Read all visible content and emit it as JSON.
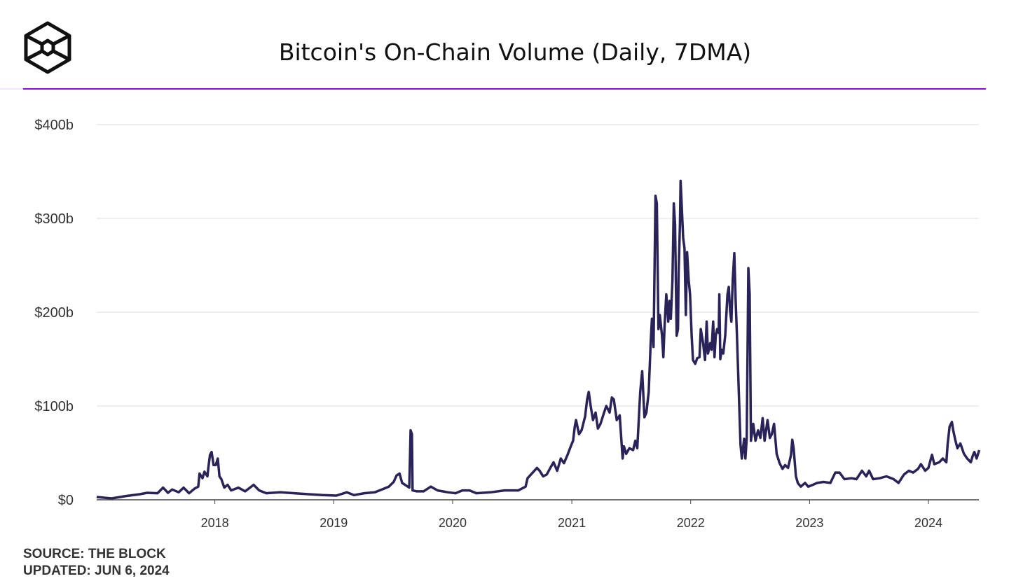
{
  "header": {
    "title": "Bitcoin's On-Chain Volume (Daily, 7DMA)",
    "logo_icon": "the-block-cube-logo"
  },
  "footer": {
    "source": "SOURCE: THE BLOCK",
    "updated": "UPDATED: JUN 6, 2024"
  },
  "colors": {
    "line": "#2a2359",
    "accent_rule": "#a000e6",
    "grid": "#e9e9ee",
    "axis": "#444444"
  },
  "chart_data": {
    "type": "line",
    "title": "Bitcoin's On-Chain Volume (Daily, 7DMA)",
    "xlabel": "",
    "ylabel": "",
    "x_range": [
      "2017-01-01",
      "2024-06-06"
    ],
    "ylim": [
      0,
      400
    ],
    "y_unit": "billion USD",
    "grid": true,
    "y_ticks": [
      {
        "value": 0,
        "label": "$0"
      },
      {
        "value": 100,
        "label": "$100b"
      },
      {
        "value": 200,
        "label": "$200b"
      },
      {
        "value": 300,
        "label": "$300b"
      },
      {
        "value": 400,
        "label": "$400b"
      }
    ],
    "x_ticks": [
      {
        "value": "2018-01-01",
        "label": "2018"
      },
      {
        "value": "2019-01-01",
        "label": "2019"
      },
      {
        "value": "2020-01-01",
        "label": "2020"
      },
      {
        "value": "2021-01-01",
        "label": "2021"
      },
      {
        "value": "2022-01-01",
        "label": "2022"
      },
      {
        "value": "2023-01-01",
        "label": "2023"
      },
      {
        "value": "2024-01-01",
        "label": "2024"
      }
    ],
    "points": [
      [
        "2017-01-03",
        3
      ],
      [
        "2017-02-18",
        1.5
      ],
      [
        "2017-04-03",
        4
      ],
      [
        "2017-05-16",
        6
      ],
      [
        "2017-06-07",
        7.5
      ],
      [
        "2017-07-09",
        7
      ],
      [
        "2017-07-26",
        13
      ],
      [
        "2017-08-10",
        7.5
      ],
      [
        "2017-08-23",
        11
      ],
      [
        "2017-09-12",
        8
      ],
      [
        "2017-09-27",
        13
      ],
      [
        "2017-10-14",
        7
      ],
      [
        "2017-10-31",
        12
      ],
      [
        "2017-11-11",
        14
      ],
      [
        "2017-11-15",
        28
      ],
      [
        "2017-11-24",
        23
      ],
      [
        "2017-11-30",
        30
      ],
      [
        "2017-12-09",
        25
      ],
      [
        "2017-12-13",
        37
      ],
      [
        "2017-12-17",
        48
      ],
      [
        "2017-12-22",
        51
      ],
      [
        "2017-12-28",
        37
      ],
      [
        "2018-01-04",
        37
      ],
      [
        "2018-01-10",
        44
      ],
      [
        "2018-01-15",
        25
      ],
      [
        "2018-01-21",
        22
      ],
      [
        "2018-01-30",
        13
      ],
      [
        "2018-02-09",
        16
      ],
      [
        "2018-02-20",
        10
      ],
      [
        "2018-03-14",
        13
      ],
      [
        "2018-04-04",
        9
      ],
      [
        "2018-04-30",
        16
      ],
      [
        "2018-05-17",
        10
      ],
      [
        "2018-06-08",
        7
      ],
      [
        "2018-07-21",
        8
      ],
      [
        "2018-09-02",
        7
      ],
      [
        "2018-10-15",
        6
      ],
      [
        "2018-11-28",
        5
      ],
      [
        "2019-01-09",
        4.5
      ],
      [
        "2019-02-10",
        8
      ],
      [
        "2019-03-04",
        5
      ],
      [
        "2019-04-05",
        7
      ],
      [
        "2019-05-07",
        8
      ],
      [
        "2019-05-29",
        11
      ],
      [
        "2019-06-19",
        14
      ],
      [
        "2019-07-04",
        19
      ],
      [
        "2019-07-13",
        26
      ],
      [
        "2019-07-22",
        28
      ],
      [
        "2019-07-30",
        18
      ],
      [
        "2019-08-12",
        15
      ],
      [
        "2019-08-21",
        13
      ],
      [
        "2019-08-25",
        74
      ],
      [
        "2019-08-29",
        70
      ],
      [
        "2019-08-31",
        10
      ],
      [
        "2019-09-13",
        9
      ],
      [
        "2019-10-04",
        9
      ],
      [
        "2019-10-26",
        14
      ],
      [
        "2019-11-16",
        10
      ],
      [
        "2019-12-18",
        8
      ],
      [
        "2020-01-10",
        7
      ],
      [
        "2020-01-31",
        10
      ],
      [
        "2020-02-22",
        10
      ],
      [
        "2020-03-14",
        7
      ],
      [
        "2020-04-26",
        8
      ],
      [
        "2020-06-08",
        10
      ],
      [
        "2020-07-21",
        10
      ],
      [
        "2020-08-12",
        14
      ],
      [
        "2020-08-18",
        23
      ],
      [
        "2020-09-03",
        29
      ],
      [
        "2020-09-16",
        34
      ],
      [
        "2020-09-24",
        31
      ],
      [
        "2020-10-05",
        25
      ],
      [
        "2020-10-16",
        27
      ],
      [
        "2020-10-27",
        34
      ],
      [
        "2020-11-06",
        40
      ],
      [
        "2020-11-17",
        31
      ],
      [
        "2020-11-28",
        44
      ],
      [
        "2020-12-08",
        39
      ],
      [
        "2020-12-19",
        48
      ],
      [
        "2020-12-30",
        58
      ],
      [
        "2021-01-05",
        63
      ],
      [
        "2021-01-10",
        78
      ],
      [
        "2021-01-14",
        85
      ],
      [
        "2021-01-23",
        70
      ],
      [
        "2021-01-31",
        74
      ],
      [
        "2021-02-11",
        89
      ],
      [
        "2021-02-17",
        107
      ],
      [
        "2021-02-22",
        115
      ],
      [
        "2021-02-28",
        100
      ],
      [
        "2021-03-07",
        85
      ],
      [
        "2021-03-15",
        93
      ],
      [
        "2021-03-22",
        76
      ],
      [
        "2021-03-30",
        81
      ],
      [
        "2021-04-10",
        93
      ],
      [
        "2021-04-17",
        100
      ],
      [
        "2021-04-27",
        93
      ],
      [
        "2021-05-04",
        109
      ],
      [
        "2021-05-10",
        107
      ],
      [
        "2021-05-19",
        85
      ],
      [
        "2021-05-28",
        90
      ],
      [
        "2021-06-06",
        44
      ],
      [
        "2021-06-10",
        57
      ],
      [
        "2021-06-17",
        49
      ],
      [
        "2021-06-27",
        55
      ],
      [
        "2021-07-08",
        53
      ],
      [
        "2021-07-15",
        63
      ],
      [
        "2021-07-21",
        55
      ],
      [
        "2021-07-30",
        115
      ],
      [
        "2021-08-05",
        137
      ],
      [
        "2021-08-12",
        88
      ],
      [
        "2021-08-18",
        93
      ],
      [
        "2021-08-25",
        115
      ],
      [
        "2021-08-31",
        167
      ],
      [
        "2021-09-04",
        193
      ],
      [
        "2021-09-09",
        163
      ],
      [
        "2021-09-15",
        324
      ],
      [
        "2021-09-19",
        316
      ],
      [
        "2021-09-24",
        182
      ],
      [
        "2021-09-28",
        197
      ],
      [
        "2021-10-05",
        175
      ],
      [
        "2021-10-09",
        152
      ],
      [
        "2021-10-13",
        186
      ],
      [
        "2021-10-18",
        219
      ],
      [
        "2021-10-24",
        190
      ],
      [
        "2021-10-28",
        212
      ],
      [
        "2021-11-01",
        193
      ],
      [
        "2021-11-06",
        234
      ],
      [
        "2021-11-10",
        316
      ],
      [
        "2021-11-14",
        294
      ],
      [
        "2021-11-19",
        175
      ],
      [
        "2021-11-23",
        182
      ],
      [
        "2021-11-25",
        242
      ],
      [
        "2021-11-29",
        294
      ],
      [
        "2021-12-01",
        340
      ],
      [
        "2021-12-05",
        309
      ],
      [
        "2021-12-09",
        279
      ],
      [
        "2021-12-13",
        268
      ],
      [
        "2021-12-17",
        197
      ],
      [
        "2021-12-21",
        264
      ],
      [
        "2021-12-26",
        234
      ],
      [
        "2021-12-30",
        219
      ],
      [
        "2022-01-04",
        175
      ],
      [
        "2022-01-08",
        149
      ],
      [
        "2022-01-15",
        145
      ],
      [
        "2022-01-21",
        151
      ],
      [
        "2022-01-28",
        152
      ],
      [
        "2022-02-01",
        182
      ],
      [
        "2022-02-08",
        167
      ],
      [
        "2022-02-14",
        149
      ],
      [
        "2022-02-19",
        190
      ],
      [
        "2022-02-23",
        156
      ],
      [
        "2022-03-02",
        167
      ],
      [
        "2022-03-06",
        160
      ],
      [
        "2022-03-11",
        190
      ],
      [
        "2022-03-15",
        152
      ],
      [
        "2022-03-19",
        175
      ],
      [
        "2022-03-23",
        182
      ],
      [
        "2022-03-28",
        178
      ],
      [
        "2022-03-30",
        219
      ],
      [
        "2022-04-02",
        150
      ],
      [
        "2022-04-06",
        160
      ],
      [
        "2022-04-11",
        156
      ],
      [
        "2022-04-17",
        175
      ],
      [
        "2022-04-24",
        219
      ],
      [
        "2022-04-28",
        227
      ],
      [
        "2022-05-02",
        201
      ],
      [
        "2022-05-06",
        190
      ],
      [
        "2022-05-10",
        234
      ],
      [
        "2022-05-15",
        263
      ],
      [
        "2022-05-19",
        212
      ],
      [
        "2022-05-23",
        176
      ],
      [
        "2022-05-30",
        101
      ],
      [
        "2022-06-03",
        59
      ],
      [
        "2022-06-07",
        44
      ],
      [
        "2022-06-14",
        65
      ],
      [
        "2022-06-18",
        44
      ],
      [
        "2022-06-22",
        66
      ],
      [
        "2022-06-27",
        247
      ],
      [
        "2022-07-01",
        219
      ],
      [
        "2022-07-05",
        63
      ],
      [
        "2022-07-12",
        81
      ],
      [
        "2022-07-19",
        63
      ],
      [
        "2022-07-27",
        74
      ],
      [
        "2022-08-03",
        66
      ],
      [
        "2022-08-10",
        87
      ],
      [
        "2022-08-16",
        63
      ],
      [
        "2022-08-25",
        85
      ],
      [
        "2022-09-01",
        66
      ],
      [
        "2022-09-07",
        70
      ],
      [
        "2022-09-14",
        81
      ],
      [
        "2022-09-22",
        49
      ],
      [
        "2022-10-01",
        39
      ],
      [
        "2022-10-10",
        33
      ],
      [
        "2022-10-18",
        37
      ],
      [
        "2022-10-27",
        34
      ],
      [
        "2022-11-05",
        48
      ],
      [
        "2022-11-09",
        64
      ],
      [
        "2022-11-13",
        55
      ],
      [
        "2022-11-20",
        25
      ],
      [
        "2022-11-26",
        18
      ],
      [
        "2022-12-05",
        14
      ],
      [
        "2022-12-18",
        18
      ],
      [
        "2022-12-28",
        14
      ],
      [
        "2023-01-11",
        16
      ],
      [
        "2023-01-24",
        18
      ],
      [
        "2023-02-13",
        19
      ],
      [
        "2023-03-06",
        18
      ],
      [
        "2023-03-21",
        29
      ],
      [
        "2023-04-03",
        29
      ],
      [
        "2023-04-18",
        22
      ],
      [
        "2023-05-10",
        23
      ],
      [
        "2023-05-25",
        22
      ],
      [
        "2023-06-11",
        31
      ],
      [
        "2023-06-24",
        25
      ],
      [
        "2023-07-03",
        31
      ],
      [
        "2023-07-15",
        22
      ],
      [
        "2023-08-04",
        23
      ],
      [
        "2023-08-25",
        25
      ],
      [
        "2023-09-16",
        22
      ],
      [
        "2023-10-01",
        18
      ],
      [
        "2023-10-18",
        27
      ],
      [
        "2023-11-02",
        31
      ],
      [
        "2023-11-15",
        29
      ],
      [
        "2023-11-30",
        33
      ],
      [
        "2023-12-09",
        38
      ],
      [
        "2023-12-22",
        31
      ],
      [
        "2024-01-01",
        34
      ],
      [
        "2024-01-12",
        48
      ],
      [
        "2024-01-19",
        38
      ],
      [
        "2024-02-03",
        40
      ],
      [
        "2024-02-14",
        44
      ],
      [
        "2024-02-25",
        40
      ],
      [
        "2024-02-29",
        59
      ],
      [
        "2024-03-06",
        78
      ],
      [
        "2024-03-13",
        83
      ],
      [
        "2024-03-17",
        74
      ],
      [
        "2024-03-24",
        63
      ],
      [
        "2024-03-30",
        55
      ],
      [
        "2024-04-08",
        60
      ],
      [
        "2024-04-19",
        49
      ],
      [
        "2024-04-29",
        44
      ],
      [
        "2024-05-10",
        40
      ],
      [
        "2024-05-17",
        48
      ],
      [
        "2024-05-21",
        51
      ],
      [
        "2024-05-28",
        44
      ],
      [
        "2024-06-05",
        53
      ]
    ]
  }
}
